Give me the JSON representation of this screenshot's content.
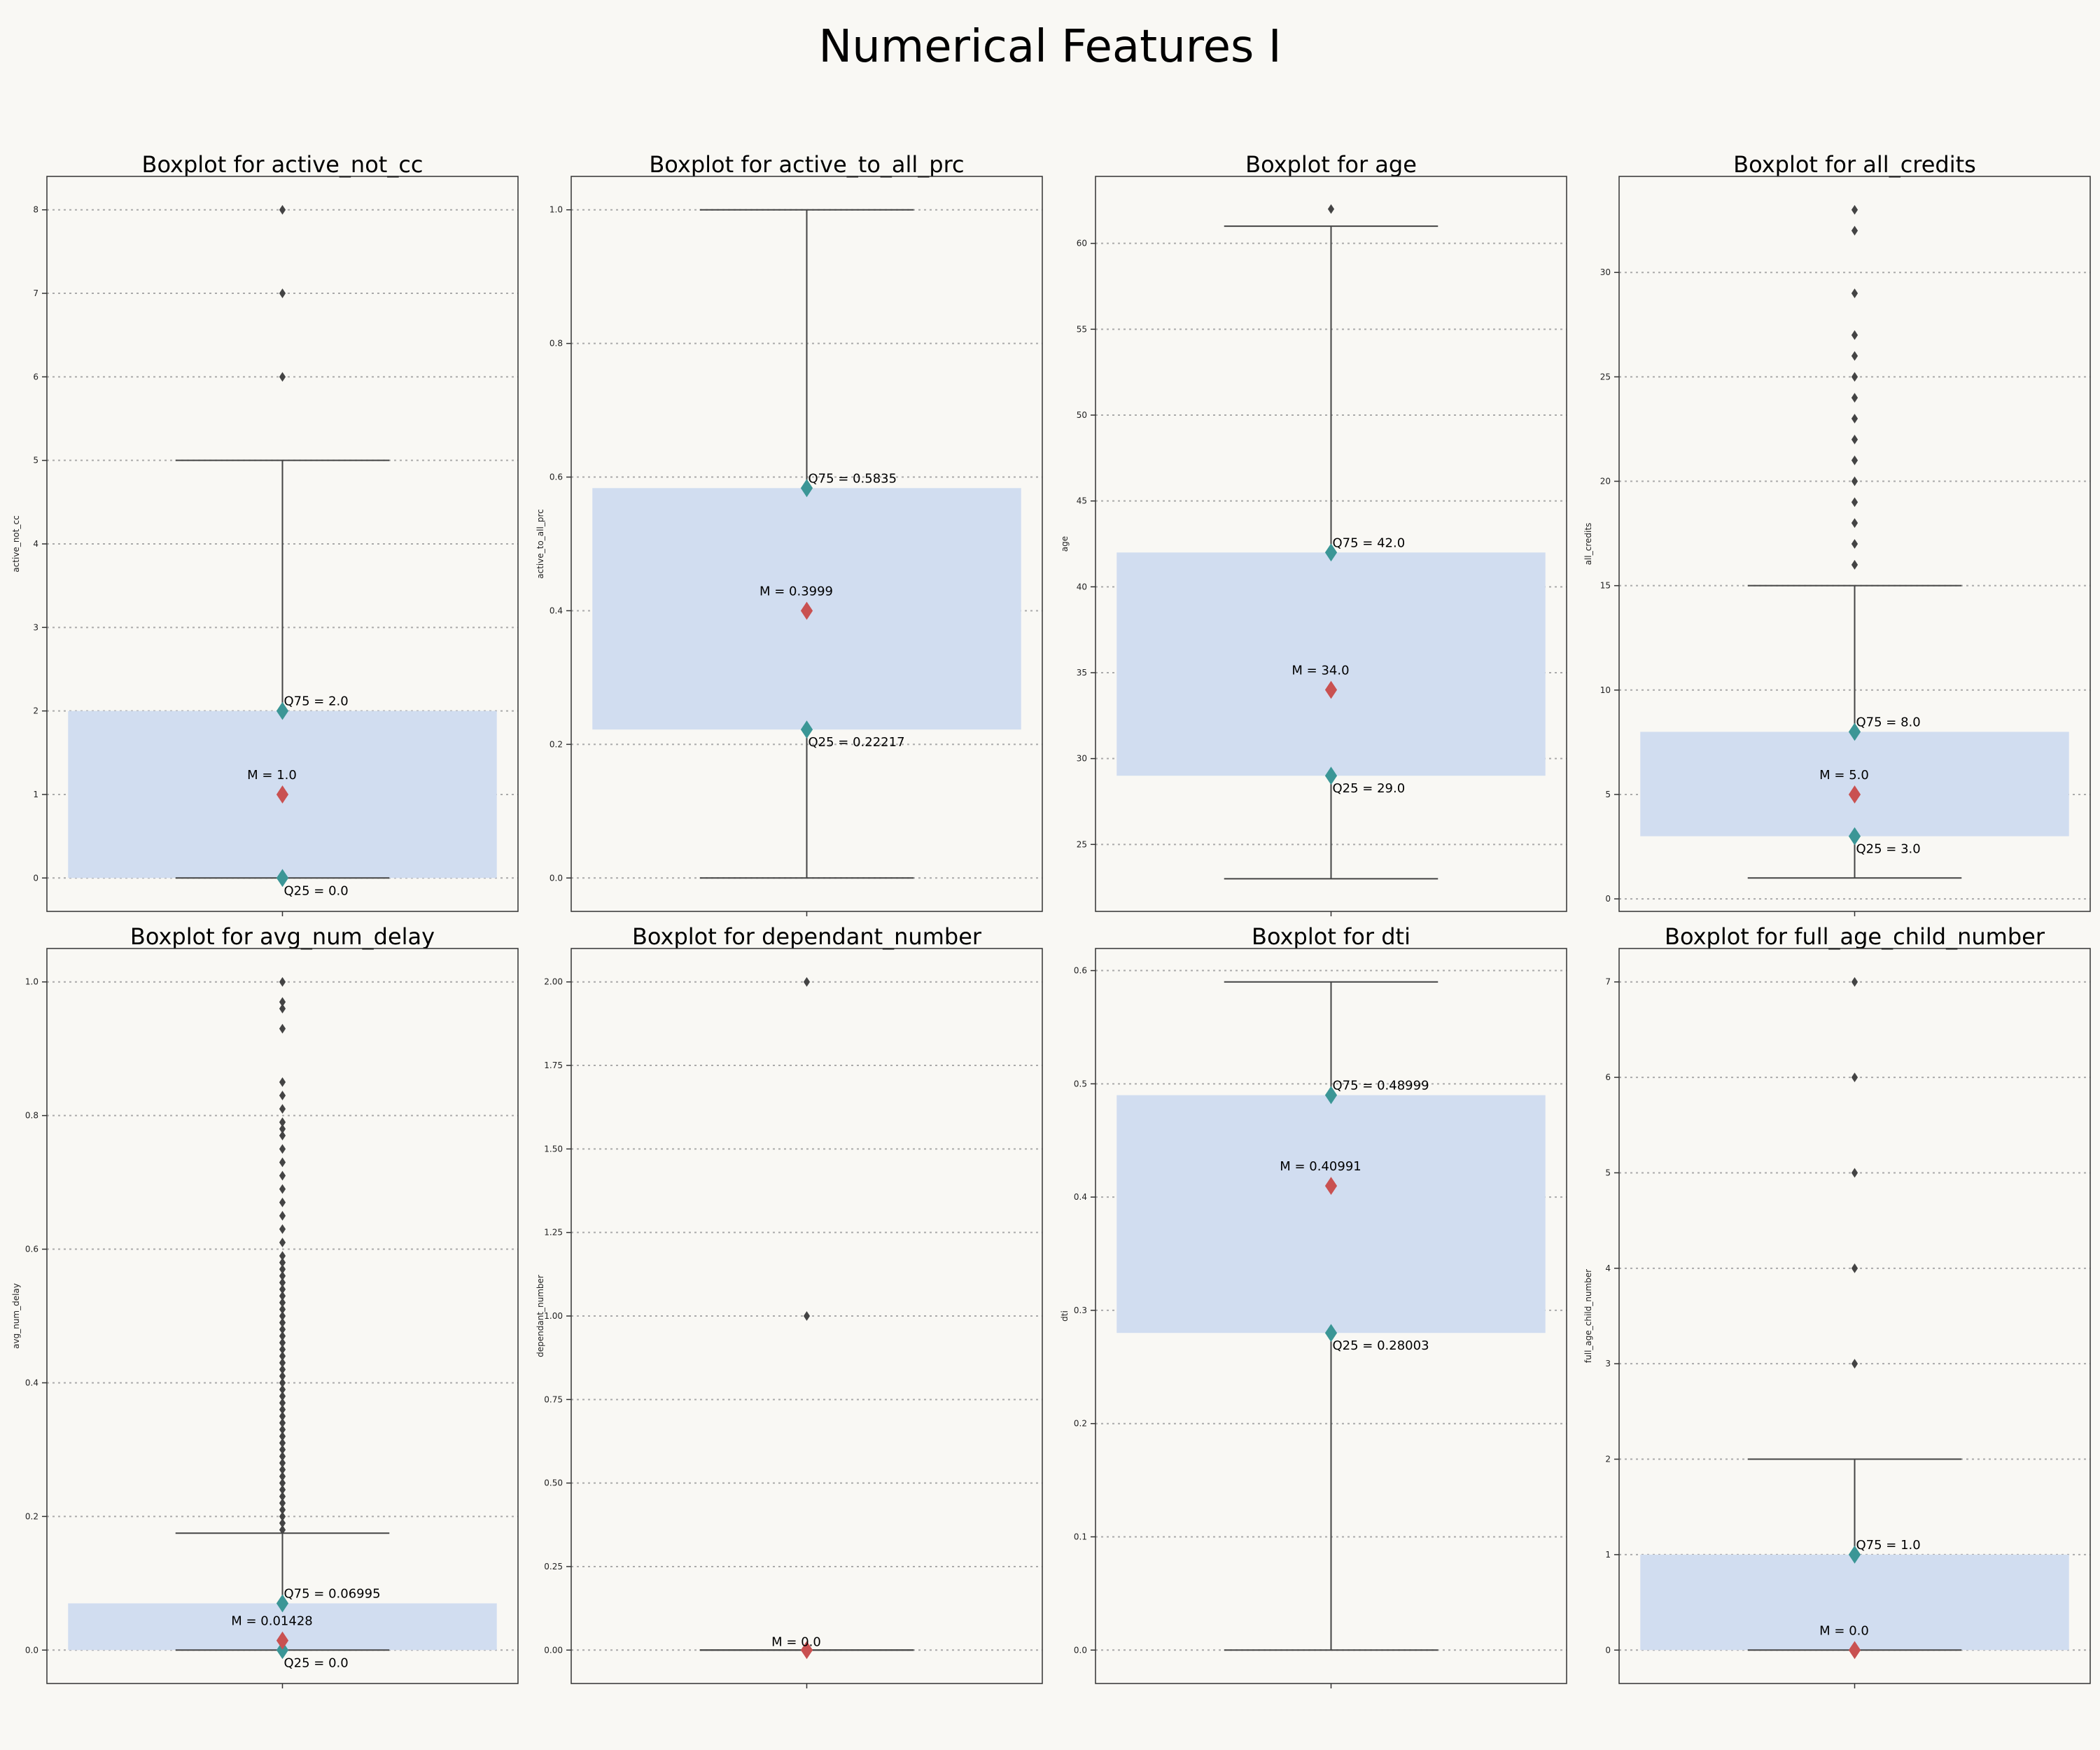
{
  "page": {
    "title": "Numerical Features I"
  },
  "colors": {
    "background": "#f9f8f4",
    "box_fill": "#d1ddf0",
    "whisker": "#444444",
    "grid": "#aaaaaa",
    "quartile_marker": "#3b9696",
    "median_marker": "#c95151",
    "outlier": "#444444"
  },
  "chart_data": [
    {
      "type": "boxplot",
      "title": "Boxplot for active_not_cc",
      "ylabel": "active_not_cc",
      "ylim": [
        -0.4,
        8.4
      ],
      "yticks": [
        0,
        1,
        2,
        3,
        4,
        5,
        6,
        7,
        8
      ],
      "ytick_labels": [
        "0",
        "1",
        "2",
        "3",
        "4",
        "5",
        "6",
        "7",
        "8"
      ],
      "q25": 0.0,
      "median": 1.0,
      "q75": 2.0,
      "whisker_low": 0.0,
      "whisker_high": 5.0,
      "outliers": [
        6,
        7,
        8
      ],
      "annotations": {
        "q75": "Q75 = 2.0",
        "median": "M = 1.0",
        "q25": "Q25 = 0.0"
      }
    },
    {
      "type": "boxplot",
      "title": "Boxplot for active_to_all_prc",
      "ylabel": "active_to_all_prc",
      "ylim": [
        -0.05,
        1.05
      ],
      "yticks": [
        0.0,
        0.2,
        0.4,
        0.6,
        0.8,
        1.0
      ],
      "ytick_labels": [
        "0.0",
        "0.2",
        "0.4",
        "0.6",
        "0.8",
        "1.0"
      ],
      "q25": 0.22217,
      "median": 0.3999,
      "q75": 0.5835,
      "whisker_low": 0.0,
      "whisker_high": 1.0,
      "outliers": [],
      "annotations": {
        "q75": "Q75 = 0.5835",
        "median": "M = 0.3999",
        "q25": "Q25 = 0.22217"
      }
    },
    {
      "type": "boxplot",
      "title": "Boxplot for age",
      "ylabel": "age",
      "ylim": [
        21.1,
        63.9
      ],
      "yticks": [
        25,
        30,
        35,
        40,
        45,
        50,
        55,
        60
      ],
      "ytick_labels": [
        "25",
        "30",
        "35",
        "40",
        "45",
        "50",
        "55",
        "60"
      ],
      "q25": 29.0,
      "median": 34.0,
      "q75": 42.0,
      "whisker_low": 23.0,
      "whisker_high": 61.0,
      "outliers": [
        62
      ],
      "annotations": {
        "q75": "Q75 = 42.0",
        "median": "M = 34.0",
        "q25": "Q25 = 29.0"
      }
    },
    {
      "type": "boxplot",
      "title": "Boxplot for all_credits",
      "ylabel": "all_credits",
      "ylim": [
        -0.6,
        34.6
      ],
      "yticks": [
        0,
        5,
        10,
        15,
        20,
        25,
        30
      ],
      "ytick_labels": [
        "0",
        "5",
        "10",
        "15",
        "20",
        "25",
        "30"
      ],
      "q25": 3.0,
      "median": 5.0,
      "q75": 8.0,
      "whisker_low": 1.0,
      "whisker_high": 15.0,
      "outliers": [
        16,
        17,
        18,
        19,
        20,
        21,
        22,
        23,
        24,
        25,
        26,
        27,
        29,
        32,
        33
      ],
      "annotations": {
        "q75": "Q75 = 8.0",
        "median": "M = 5.0",
        "q25": "Q25 = 3.0"
      }
    },
    {
      "type": "boxplot",
      "title": "Boxplot for avg_num_delay",
      "ylabel": "avg_num_delay",
      "ylim": [
        -0.05,
        1.05
      ],
      "yticks": [
        0.0,
        0.2,
        0.4,
        0.6,
        0.8,
        1.0
      ],
      "ytick_labels": [
        "0.0",
        "0.2",
        "0.4",
        "0.6",
        "0.8",
        "1.0"
      ],
      "q25": 0.0,
      "median": 0.01428,
      "q75": 0.06995,
      "whisker_low": 0.0,
      "whisker_high": 0.175,
      "outliers": [
        0.18,
        0.19,
        0.2,
        0.21,
        0.22,
        0.23,
        0.24,
        0.25,
        0.26,
        0.27,
        0.28,
        0.29,
        0.3,
        0.31,
        0.32,
        0.33,
        0.34,
        0.35,
        0.36,
        0.37,
        0.38,
        0.39,
        0.4,
        0.41,
        0.42,
        0.43,
        0.44,
        0.45,
        0.46,
        0.47,
        0.48,
        0.49,
        0.5,
        0.51,
        0.52,
        0.53,
        0.54,
        0.55,
        0.56,
        0.57,
        0.58,
        0.59,
        0.61,
        0.63,
        0.65,
        0.67,
        0.69,
        0.71,
        0.73,
        0.75,
        0.77,
        0.78,
        0.79,
        0.81,
        0.83,
        0.85,
        0.93,
        0.96,
        0.97,
        1.0
      ],
      "annotations": {
        "q75": "Q75 = 0.06995",
        "median": "M = 0.01428",
        "q25": "Q25 = 0.0"
      }
    },
    {
      "type": "boxplot",
      "title": "Boxplot for dependant_number",
      "ylabel": "dependant_number",
      "ylim": [
        -0.1,
        2.1
      ],
      "yticks": [
        0.0,
        0.25,
        0.5,
        0.75,
        1.0,
        1.25,
        1.5,
        1.75,
        2.0
      ],
      "ytick_labels": [
        "0.00",
        "0.25",
        "0.50",
        "0.75",
        "1.00",
        "1.25",
        "1.50",
        "1.75",
        "2.00"
      ],
      "q25": 0.0,
      "median": 0.0,
      "q75": 0.0,
      "whisker_low": 0.0,
      "whisker_high": 0.0,
      "outliers": [
        1,
        2
      ],
      "annotations": {
        "median": "M = 0.0"
      }
    },
    {
      "type": "boxplot",
      "title": "Boxplot for dti",
      "ylabel": "dti",
      "ylim": [
        -0.0295,
        0.6195
      ],
      "yticks": [
        0.0,
        0.1,
        0.2,
        0.3,
        0.4,
        0.5,
        0.6
      ],
      "ytick_labels": [
        "0.0",
        "0.1",
        "0.2",
        "0.3",
        "0.4",
        "0.5",
        "0.6"
      ],
      "q25": 0.28003,
      "median": 0.40991,
      "q75": 0.48999,
      "whisker_low": 0.0,
      "whisker_high": 0.59,
      "outliers": [],
      "annotations": {
        "q75": "Q75 = 0.48999",
        "median": "M = 0.40991",
        "q25": "Q25 = 0.28003"
      }
    },
    {
      "type": "boxplot",
      "title": "Boxplot for full_age_child_number",
      "ylabel": "full_age_child_number",
      "ylim": [
        -0.35,
        7.35
      ],
      "yticks": [
        0,
        1,
        2,
        3,
        4,
        5,
        6,
        7
      ],
      "ytick_labels": [
        "0",
        "1",
        "2",
        "3",
        "4",
        "5",
        "6",
        "7"
      ],
      "q25": 0.0,
      "median": 0.0,
      "q75": 1.0,
      "whisker_low": 0.0,
      "whisker_high": 2.0,
      "outliers": [
        3,
        4,
        5,
        6,
        7
      ],
      "annotations": {
        "q75": "Q75 = 1.0",
        "median": "M = 0.0"
      }
    }
  ]
}
